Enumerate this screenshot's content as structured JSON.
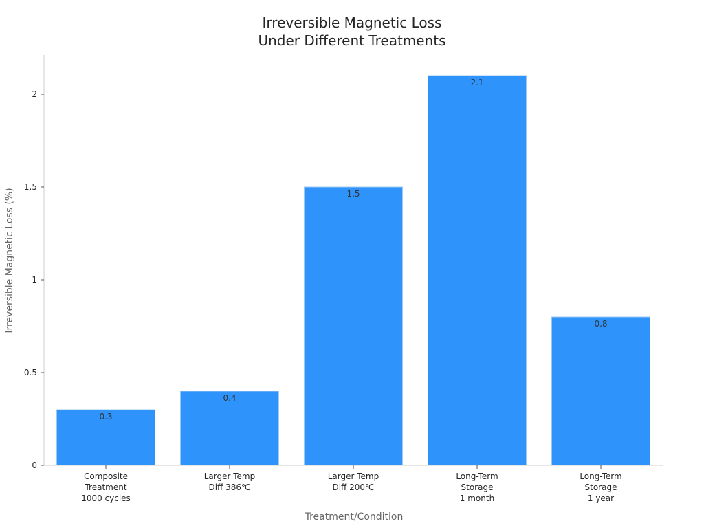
{
  "chart_data": {
    "type": "bar",
    "title": [
      "Irreversible Magnetic Loss",
      "Under Different Treatments"
    ],
    "xlabel": "Treatment/Condition",
    "ylabel": "Irreversible Magnetic Loss (%)",
    "categories": [
      [
        "Composite",
        "Treatment",
        "1000 cycles"
      ],
      [
        "Larger Temp",
        "Diff 386℃"
      ],
      [
        "Larger Temp",
        "Diff 200℃"
      ],
      [
        "Long-Term",
        "Storage",
        "1 month"
      ],
      [
        "Long-Term",
        "Storage",
        "1 year"
      ]
    ],
    "values": [
      0.3,
      0.4,
      1.5,
      2.1,
      0.8
    ],
    "data_labels": [
      "0.3",
      "0.4",
      "1.5",
      "2.1",
      "0.8"
    ],
    "ylim": [
      0,
      2.2
    ],
    "yticks": [
      0,
      0.5,
      1,
      1.5,
      2
    ],
    "ytick_labels": [
      "0",
      "0.5",
      "1",
      "1.5",
      "2"
    ],
    "grid": false,
    "legend": "none",
    "colors": {
      "bar": "#2e93fa",
      "bar_edge": "#9cc8f0",
      "axis": "#cccccc"
    }
  }
}
